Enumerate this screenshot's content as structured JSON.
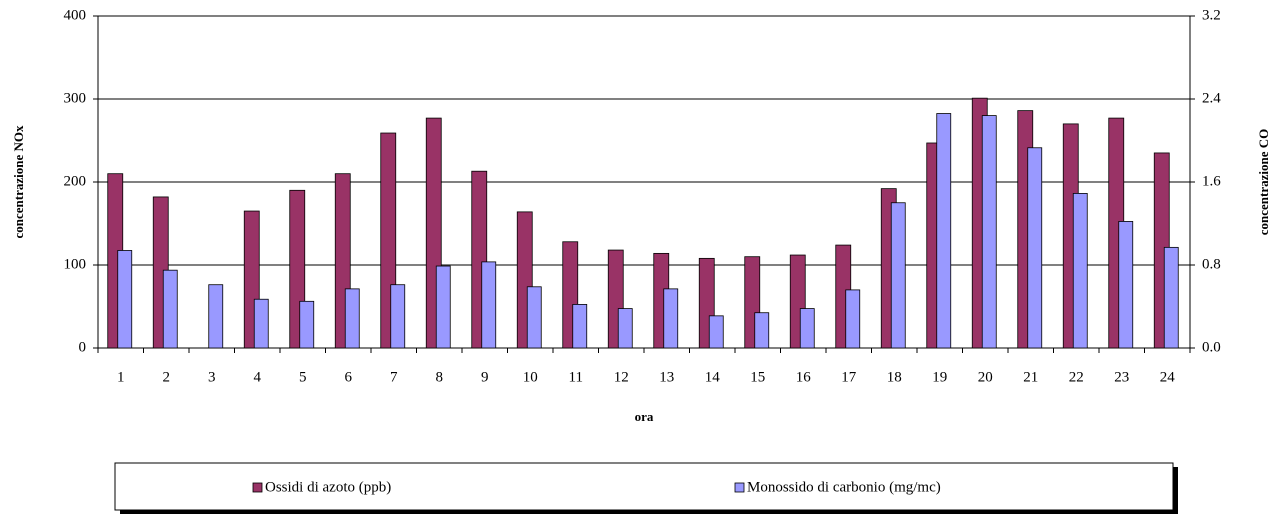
{
  "chart_data": {
    "type": "bar",
    "categories": [
      "1",
      "2",
      "3",
      "4",
      "5",
      "6",
      "7",
      "8",
      "9",
      "10",
      "11",
      "12",
      "13",
      "14",
      "15",
      "16",
      "17",
      "18",
      "19",
      "20",
      "21",
      "22",
      "23",
      "24"
    ],
    "series": [
      {
        "name": "Ossidi di azoto (ppb)",
        "color": "#993366",
        "values": [
          210,
          182,
          null,
          165,
          190,
          210,
          259,
          277,
          213,
          164,
          128,
          118,
          114,
          108,
          110,
          112,
          124,
          192,
          247,
          301,
          286,
          270,
          277,
          235
        ]
      },
      {
        "name": "Monossido di carbonio (mg/mc)",
        "color": "#9999ff",
        "axis": "y2",
        "values": [
          0.94,
          0.75,
          0.61,
          0.47,
          0.45,
          0.57,
          0.61,
          0.79,
          0.83,
          0.59,
          0.42,
          0.38,
          0.57,
          0.31,
          0.34,
          0.38,
          0.56,
          1.4,
          2.26,
          2.24,
          1.93,
          1.49,
          1.22,
          0.97
        ]
      }
    ],
    "ylim": [
      0,
      400
    ],
    "yticks": [
      0,
      100,
      200,
      300,
      400
    ],
    "y2lim": [
      0,
      3.2
    ],
    "y2ticks": [
      {
        "value": 0,
        "label": "0.0"
      },
      0.8,
      1.6,
      2.4,
      3.2
    ],
    "x_label": "ora",
    "y_label": "concentrazione NOx",
    "y2_label": "concentrazione CO",
    "grid": true,
    "legend": "bottom"
  }
}
